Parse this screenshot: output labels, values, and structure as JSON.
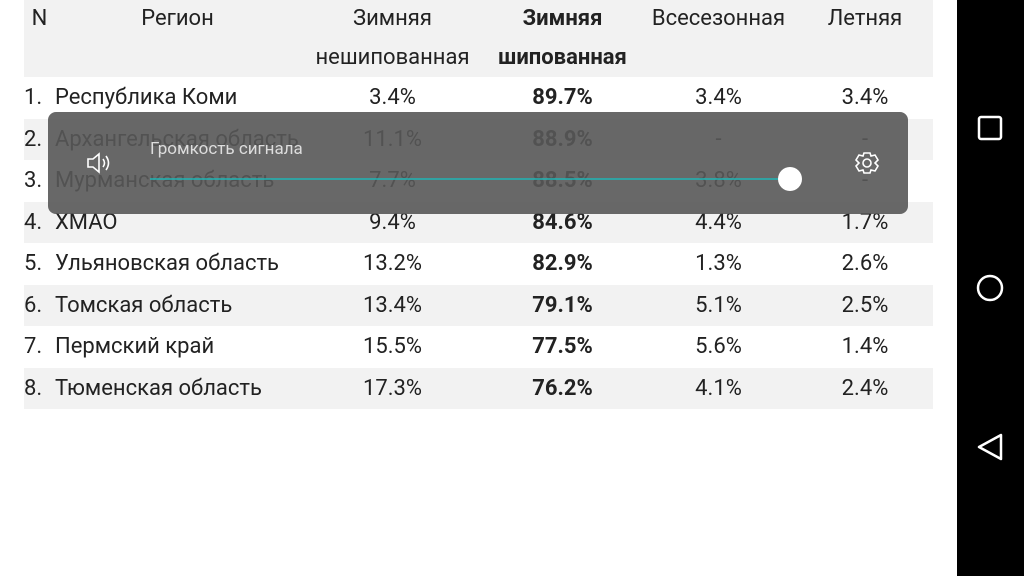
{
  "table": {
    "header": [
      "N",
      "Регион",
      "Зимняя нешипованная",
      "Зимняя шипованная",
      "Всесезонная",
      "Летняя"
    ],
    "rows": [
      [
        "1.",
        "Республика Коми",
        "3.4%",
        "89.7%",
        "3.4%",
        "3.4%"
      ],
      [
        "2.",
        "Архангельская область",
        "11.1%",
        "88.9%",
        "-",
        "-"
      ],
      [
        "3.",
        "Мурманская область",
        "7.7%",
        "88.5%",
        "3.8%",
        "-"
      ],
      [
        "4.",
        "ХМАО",
        "9.4%",
        "84.6%",
        "4.4%",
        "1.7%"
      ],
      [
        "5.",
        "Ульяновская область",
        "13.2%",
        "82.9%",
        "1.3%",
        "2.6%"
      ],
      [
        "6.",
        "Томская область",
        "13.4%",
        "79.1%",
        "5.1%",
        "2.5%"
      ],
      [
        "7.",
        "Пермский край",
        "15.5%",
        "77.5%",
        "5.6%",
        "1.4%"
      ],
      [
        "8.",
        "Тюменская область",
        "17.3%",
        "76.2%",
        "4.1%",
        "2.4%"
      ]
    ]
  },
  "volume_panel": {
    "label": "Громкость сигнала"
  }
}
